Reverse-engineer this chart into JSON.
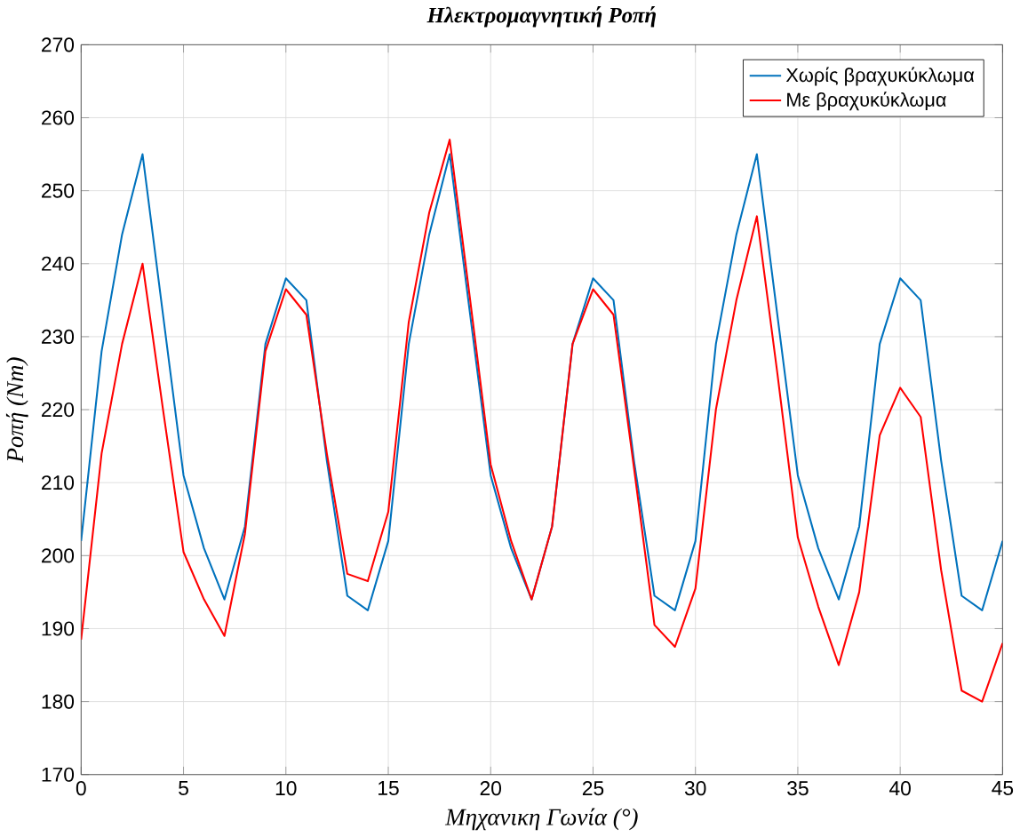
{
  "chart_data": {
    "type": "line",
    "title": "Ηλεκτρομαγνητική Ροπή",
    "xlabel": "Μηχανικη Γωνία (°)",
    "ylabel": "Ροπή (Nm)",
    "x": [
      0,
      1,
      2,
      3,
      4,
      5,
      6,
      7,
      8,
      9,
      10,
      11,
      12,
      13,
      14,
      15,
      16,
      17,
      18,
      19,
      20,
      21,
      22,
      23,
      24,
      25,
      26,
      27,
      28,
      29,
      30,
      31,
      32,
      33,
      34,
      35,
      36,
      37,
      38,
      39,
      40,
      41,
      42,
      43,
      44,
      45
    ],
    "series": [
      {
        "name": "Χωρίς βραχυκύκλωμα",
        "color": "#0072bd",
        "values": [
          202,
          228,
          244,
          255,
          233,
          211,
          201,
          194,
          204,
          229,
          238,
          235,
          213,
          194.5,
          192.5,
          202,
          229,
          244,
          255,
          233,
          211,
          201,
          194,
          204,
          229,
          238,
          235,
          213,
          194.5,
          192.5,
          202,
          229,
          244,
          255,
          233,
          211,
          201,
          194,
          204,
          229,
          238,
          235,
          213,
          194.5,
          192.5,
          202
        ]
      },
      {
        "name": "Με βραχυκύκλωμα",
        "color": "#ff0000",
        "values": [
          188.5,
          214,
          229,
          240,
          220,
          200.5,
          194,
          189,
          203,
          228,
          236.5,
          233,
          214,
          197.5,
          196.5,
          206,
          232,
          247,
          257,
          235,
          212.5,
          202,
          194,
          204,
          229,
          236.5,
          233,
          212,
          190.5,
          187.5,
          195.5,
          220,
          235,
          246.5,
          225,
          202.5,
          193,
          185,
          195,
          216.5,
          223,
          219,
          198,
          181.5,
          180,
          188
        ]
      }
    ],
    "xlim": [
      0,
      45
    ],
    "ylim": [
      170,
      270
    ],
    "xticks": [
      0,
      5,
      10,
      15,
      20,
      25,
      30,
      35,
      40,
      45
    ],
    "yticks": [
      170,
      180,
      190,
      200,
      210,
      220,
      230,
      240,
      250,
      260,
      270
    ],
    "grid": true,
    "legend": "top right"
  }
}
